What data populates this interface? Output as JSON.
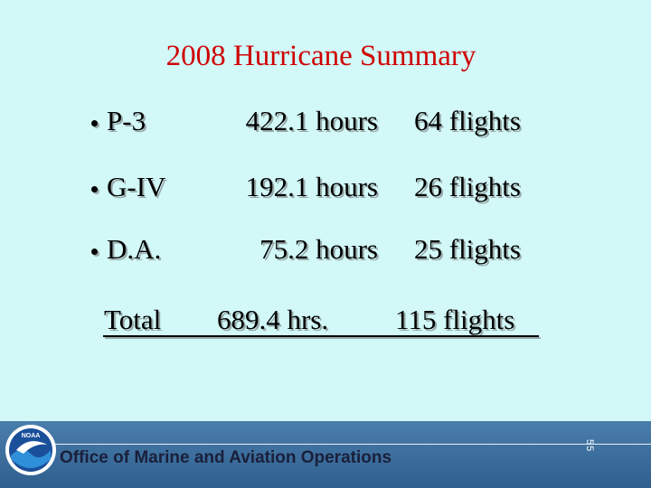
{
  "slide": {
    "title": "2008 Hurricane Summary",
    "rows": [
      [
        "P-3",
        "422.1 hours",
        "64 flights"
      ],
      [
        "G-IV",
        "192.1 hours",
        "26 flights"
      ],
      [
        "D.A.",
        "75.2 hours",
        "25 flights"
      ]
    ],
    "total": [
      "Total",
      "689.4 hrs.",
      "115 flights"
    ],
    "footer": {
      "logo": "NOAA",
      "office": "Office of Marine and Aviation Operations",
      "page": "55"
    }
  }
}
